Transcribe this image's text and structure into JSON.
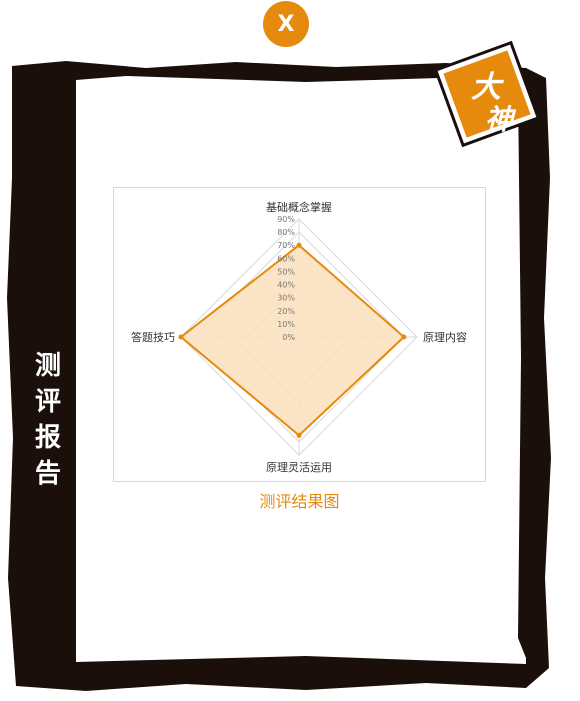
{
  "close_button": {
    "label": "X"
  },
  "side_title": "测评报告",
  "badge": {
    "line1": "大",
    "line2": "神"
  },
  "chart_caption": "测评结果图",
  "colors": {
    "accent": "#e58a0c",
    "frame": "#1b0f0b",
    "fill": "#fbe1bd"
  },
  "chart_data": {
    "type": "radar",
    "title": "",
    "categories": [
      "基础概念掌握",
      "原理内容",
      "原理灵活运用",
      "答题技巧"
    ],
    "tick_labels": [
      "90%",
      "80%",
      "70%",
      "60%",
      "50%",
      "40%",
      "30%",
      "20%",
      "10%",
      "0%"
    ],
    "range": [
      0,
      90
    ],
    "series": [
      {
        "values": [
          70,
          80,
          75,
          90
        ]
      }
    ]
  }
}
